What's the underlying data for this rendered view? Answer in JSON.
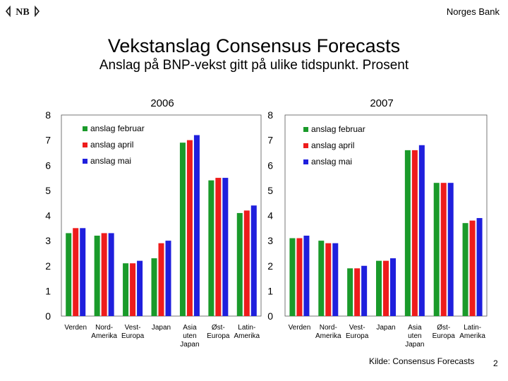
{
  "header": {
    "logo_text": "NB",
    "bank_name": "Norges Bank"
  },
  "title": "Vekstanslag Consensus Forecasts",
  "subtitle": "Anslag på BNP-vekst gitt på ulike tidspunkt. Prosent",
  "footer": {
    "source": "Kilde: Consensus Forecasts",
    "page_number": "2"
  },
  "colors": {
    "series": [
      "#1a9a2a",
      "#ee1c1c",
      "#1f1fdd"
    ],
    "plot_bg": "#ffffff"
  },
  "chart_data": [
    {
      "type": "bar",
      "title": "2006",
      "ylim": [
        0,
        8
      ],
      "yticks": [
        "0",
        "1",
        "2",
        "3",
        "4",
        "5",
        "6",
        "7",
        "8"
      ],
      "grid": false,
      "legend_position": "top-left",
      "categories": [
        [
          "Verden"
        ],
        [
          "Nord-",
          "Amerika"
        ],
        [
          "Vest-",
          "Europa"
        ],
        [
          "Japan"
        ],
        [
          "Asia",
          "uten",
          "Japan"
        ],
        [
          "Øst-",
          "Europa"
        ],
        [
          "Latin-",
          "Amerika"
        ]
      ],
      "series": [
        {
          "name": "anslag februar",
          "values": [
            3.3,
            3.2,
            2.1,
            2.3,
            6.9,
            5.4,
            4.1
          ]
        },
        {
          "name": "anslag april",
          "values": [
            3.5,
            3.3,
            2.1,
            2.9,
            7.0,
            5.5,
            4.2
          ]
        },
        {
          "name": "anslag mai",
          "values": [
            3.5,
            3.3,
            2.2,
            3.0,
            7.2,
            5.5,
            4.4
          ]
        }
      ]
    },
    {
      "type": "bar",
      "title": "2007",
      "ylim": [
        0,
        8
      ],
      "yticks": [
        "0",
        "1",
        "2",
        "3",
        "4",
        "5",
        "6",
        "7",
        "8"
      ],
      "grid": false,
      "legend_position": "top-left",
      "categories": [
        [
          "Verden"
        ],
        [
          "Nord-",
          "Amerika"
        ],
        [
          "Vest-",
          "Europa"
        ],
        [
          "Japan"
        ],
        [
          "Asia",
          "uten",
          "Japan"
        ],
        [
          "Øst-",
          "Europa"
        ],
        [
          "Latin-",
          "Amerika"
        ]
      ],
      "series": [
        {
          "name": "anslag februar",
          "values": [
            3.1,
            3.0,
            1.9,
            2.2,
            6.6,
            5.3,
            3.7
          ]
        },
        {
          "name": "anslag april",
          "values": [
            3.1,
            2.9,
            1.9,
            2.2,
            6.6,
            5.3,
            3.8
          ]
        },
        {
          "name": "anslag mai",
          "values": [
            3.2,
            2.9,
            2.0,
            2.3,
            6.8,
            5.3,
            3.9
          ]
        }
      ]
    }
  ]
}
